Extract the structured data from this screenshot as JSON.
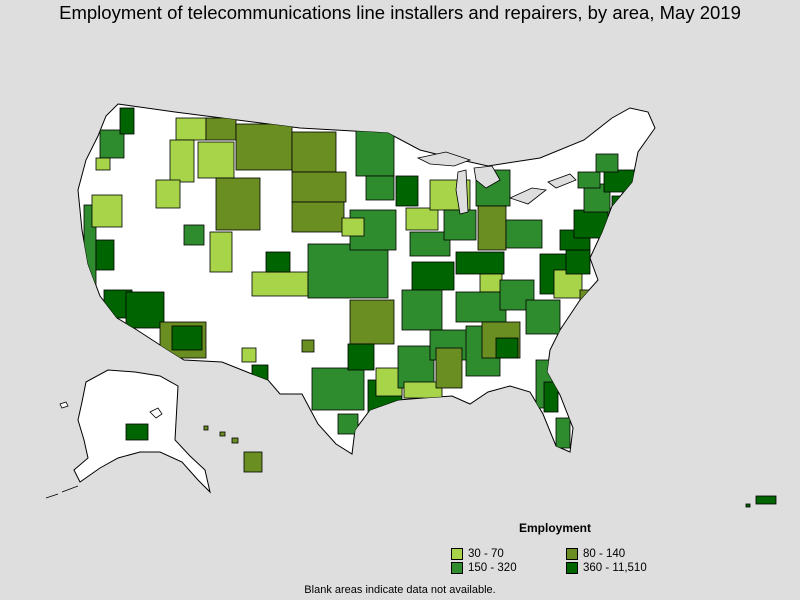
{
  "title": "Employment of telecommunications line installers and repairers, by area, May 2019",
  "legend": {
    "title": "Employment",
    "items": [
      {
        "label": "30 - 70",
        "color": "#a8d44a"
      },
      {
        "label": "80 - 140",
        "color": "#6b8e23"
      },
      {
        "label": "150 - 320",
        "color": "#2e8b2e"
      },
      {
        "label": "360 - 11,510",
        "color": "#006400"
      }
    ]
  },
  "footnote": "Blank areas indicate data not available."
}
